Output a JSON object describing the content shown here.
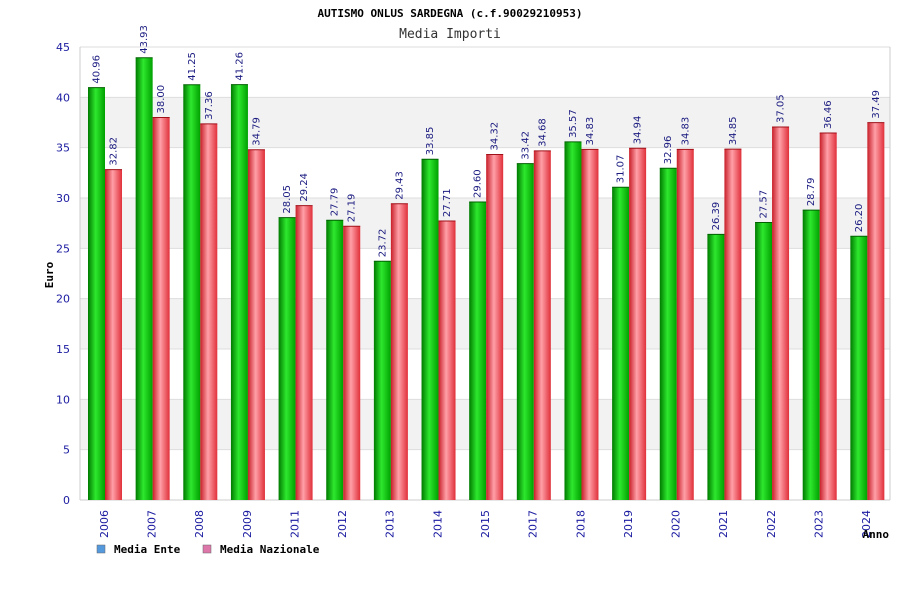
{
  "chart_data": {
    "type": "bar",
    "title": "AUTISMO ONLUS SARDEGNA (c.f.90029210953)",
    "subtitle": "Media Importi",
    "xlabel": "Anno",
    "ylabel": "Euro",
    "ylim": [
      0,
      45
    ],
    "yticks": [
      0,
      5,
      10,
      15,
      20,
      25,
      30,
      35,
      40,
      45
    ],
    "grid": true,
    "legend_position": "bottom-left",
    "categories": [
      "2006",
      "2007",
      "2008",
      "2009",
      "2011",
      "2012",
      "2013",
      "2014",
      "2015",
      "2017",
      "2018",
      "2019",
      "2020",
      "2021",
      "2022",
      "2023",
      "2024"
    ],
    "series": [
      {
        "name": "Media Ente",
        "color": "#00a000",
        "legend_color": "#5599dd",
        "values": [
          40.96,
          43.93,
          41.25,
          41.26,
          28.05,
          27.79,
          23.72,
          33.85,
          29.6,
          33.42,
          35.57,
          31.07,
          32.96,
          26.39,
          27.57,
          28.79,
          26.2
        ],
        "labels": [
          "40.96",
          "43.93",
          "41.25",
          "41.26",
          "28.05",
          "27.79",
          "23.72",
          "33.85",
          "29.60",
          "33.42",
          "35.57",
          "31.07",
          "32.96",
          "26.39",
          "27.57",
          "28.79",
          "26.20"
        ]
      },
      {
        "name": "Media Nazionale",
        "color": "#e0303a",
        "legend_color": "#dd77aa",
        "values": [
          32.82,
          38.0,
          37.36,
          34.79,
          29.24,
          27.19,
          29.43,
          27.71,
          34.32,
          34.68,
          34.83,
          34.94,
          34.83,
          34.85,
          37.05,
          36.46,
          37.49
        ],
        "labels": [
          "32.82",
          "38.00",
          "37.36",
          "34.79",
          "29.24",
          "27.19",
          "29.43",
          "27.71",
          "34.32",
          "34.68",
          "34.83",
          "34.94",
          "34.83",
          "34.85",
          "37.05",
          "36.46",
          "37.49"
        ]
      }
    ]
  }
}
